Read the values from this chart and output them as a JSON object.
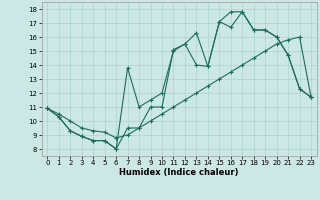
{
  "xlabel": "Humidex (Indice chaleur)",
  "xlim": [
    -0.5,
    23.5
  ],
  "ylim": [
    7.5,
    18.5
  ],
  "xticks": [
    0,
    1,
    2,
    3,
    4,
    5,
    6,
    7,
    8,
    9,
    10,
    11,
    12,
    13,
    14,
    15,
    16,
    17,
    18,
    19,
    20,
    21,
    22,
    23
  ],
  "yticks": [
    8,
    9,
    10,
    11,
    12,
    13,
    14,
    15,
    16,
    17,
    18
  ],
  "bg_color": "#cce8e4",
  "line_color": "#1e6b5e",
  "grid_color": "#aad4cc",
  "line1_x": [
    0,
    1,
    2,
    3,
    4,
    5,
    6,
    7,
    8,
    9,
    10,
    11,
    12,
    13,
    14,
    15,
    16,
    17,
    18,
    19,
    20,
    21,
    22,
    23
  ],
  "line1_y": [
    10.9,
    10.3,
    9.3,
    8.9,
    8.6,
    8.6,
    8.0,
    9.5,
    9.5,
    11.0,
    11.0,
    15.1,
    15.5,
    16.3,
    13.9,
    17.1,
    16.7,
    17.8,
    16.5,
    16.5,
    16.0,
    14.7,
    12.3,
    11.7
  ],
  "line2_x": [
    0,
    1,
    2,
    3,
    4,
    5,
    6,
    7,
    8,
    9,
    10,
    11,
    12,
    13,
    14,
    15,
    16,
    17,
    18,
    19,
    20,
    21,
    22,
    23
  ],
  "line2_y": [
    10.9,
    10.3,
    9.3,
    8.9,
    8.6,
    8.6,
    8.0,
    13.8,
    11.0,
    11.5,
    12.0,
    15.0,
    15.5,
    14.0,
    13.9,
    17.1,
    17.8,
    17.8,
    16.5,
    16.5,
    16.0,
    14.7,
    12.3,
    11.7
  ],
  "line3_x": [
    0,
    1,
    2,
    3,
    4,
    5,
    6,
    7,
    8,
    9,
    10,
    11,
    12,
    13,
    14,
    15,
    16,
    17,
    18,
    19,
    20,
    21,
    22,
    23
  ],
  "line3_y": [
    10.9,
    10.5,
    10.0,
    9.5,
    9.3,
    9.2,
    8.8,
    9.0,
    9.5,
    10.0,
    10.5,
    11.0,
    11.5,
    12.0,
    12.5,
    13.0,
    13.5,
    14.0,
    14.5,
    15.0,
    15.5,
    15.8,
    16.0,
    11.7
  ]
}
